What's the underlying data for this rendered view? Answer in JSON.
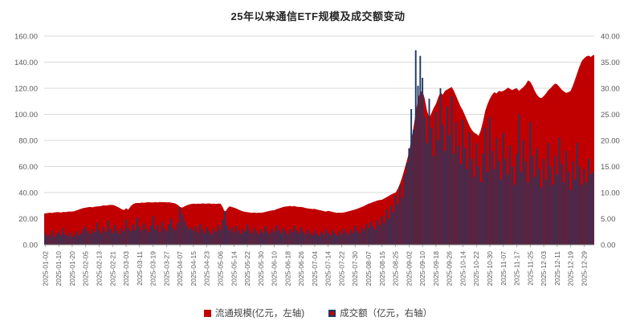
{
  "title": "25年以来通信ETF规模及成交额变动",
  "colors": {
    "area": "#C00000",
    "bar": "#1F3864",
    "grid": "#D9D9D9",
    "axis_line": "#808080",
    "axis_text": "#595959",
    "title_text": "#262626",
    "legend_text": "#404040",
    "background": "#FFFFFF"
  },
  "legend": {
    "marker_bar_fill": "#C00000",
    "marker_bar_border": "#1F3864"
  },
  "chart_data": {
    "type": "combo",
    "title": "25年以来通信ETF规模及成交额变动",
    "grid": true,
    "legend_position": "bottom",
    "x_tick_interval": 6,
    "x_tick_labels": [
      "2025-01-02",
      "2025-01-10",
      "2025-01-20",
      "2025-02-05",
      "2025-02-13",
      "2025-02-21",
      "2025-03-03",
      "2025-03-11",
      "2025-03-19",
      "2025-03-27",
      "2025-04-07",
      "2025-04-15",
      "2025-04-23",
      "2025-05-06",
      "2025-05-14",
      "2025-05-22",
      "2025-05-30",
      "2025-06-10",
      "2025-06-18",
      "2025-06-26",
      "2025-07-04",
      "2025-07-14",
      "2025-07-22",
      "2025-07-30",
      "2025-08-07",
      "2025-08-15",
      "2025-08-25",
      "2025-09-02",
      "2025-09-10",
      "2025-09-18",
      "2025-09-26",
      "2025-10-14",
      "2025-10-22",
      "2025-10-30",
      "2025-11-07",
      "2025-11-17",
      "2025-11-25",
      "2025-12-03",
      "2025-12-11",
      "2025-12-19",
      "2025-12-29"
    ],
    "left_axis": {
      "min": 0,
      "max": 160,
      "step": 20,
      "labels": [
        "0.00",
        "20.00",
        "40.00",
        "60.00",
        "80.00",
        "100.00",
        "120.00",
        "140.00",
        "160.00"
      ]
    },
    "right_axis": {
      "min": 0,
      "max": 40,
      "step": 5,
      "labels": [
        "0.00",
        "5.00",
        "10.00",
        "15.00",
        "20.00",
        "25.00",
        "30.00",
        "35.00",
        "40.00"
      ]
    },
    "series": [
      {
        "name": "流通规模(亿元，左轴)",
        "type": "area",
        "axis": "left",
        "color": "#C00000",
        "values": [
          24.0,
          24.3,
          24.6,
          24.4,
          24.8,
          25.0,
          25.0,
          24.7,
          25.2,
          25.0,
          25.4,
          25.5,
          25.5,
          25.8,
          26.4,
          27.0,
          27.6,
          28.2,
          28.5,
          28.8,
          29.0,
          28.7,
          29.2,
          29.4,
          29.5,
          29.8,
          30.2,
          30.0,
          30.4,
          30.5,
          30.5,
          30.0,
          29.2,
          28.3,
          27.2,
          26.6,
          28.0,
          26.8,
          29.5,
          31.0,
          31.8,
          32.0,
          32.0,
          32.3,
          32.1,
          32.4,
          32.6,
          32.4,
          32.5,
          32.7,
          32.4,
          32.8,
          32.6,
          32.7,
          32.5,
          32.6,
          32.3,
          32.0,
          31.5,
          30.5,
          29.0,
          28.5,
          29.5,
          30.2,
          30.8,
          31.2,
          31.5,
          31.3,
          31.6,
          31.4,
          31.7,
          31.5,
          31.5,
          31.7,
          31.4,
          31.6,
          31.3,
          31.5,
          31.5,
          29.0,
          24.6,
          27.5,
          29.5,
          29.0,
          28.5,
          27.8,
          27.0,
          26.2,
          25.6,
          25.2,
          25.0,
          24.8,
          24.5,
          24.7,
          24.4,
          24.6,
          24.5,
          24.8,
          25.2,
          25.6,
          26.0,
          26.3,
          26.5,
          27.2,
          27.8,
          28.4,
          29.0,
          29.3,
          29.5,
          29.8,
          29.4,
          29.7,
          29.2,
          29.0,
          29.0,
          28.6,
          28.2,
          27.9,
          27.6,
          27.4,
          27.5,
          27.0,
          26.6,
          26.2,
          25.8,
          25.5,
          26.0,
          25.6,
          25.2,
          24.8,
          24.5,
          24.6,
          24.5,
          24.8,
          25.2,
          25.6,
          26.1,
          26.5,
          27.0,
          27.6,
          28.3,
          29.0,
          29.8,
          30.6,
          31.5,
          32.0,
          32.8,
          33.3,
          34.0,
          34.3,
          34.5,
          35.5,
          36.5,
          37.5,
          38.5,
          39.3,
          40.0,
          43.0,
          47.0,
          52.0,
          58.0,
          64.0,
          71.0,
          80.0,
          90.0,
          101.0,
          112.0,
          117.0,
          118.0,
          112.0,
          103.0,
          97.0,
          101.0,
          105.0,
          108.0,
          113.0,
          117.0,
          115.0,
          118.0,
          119.0,
          120.0,
          121.0,
          118.0,
          114.0,
          110.0,
          106.0,
          103.0,
          99.0,
          95.0,
          91.0,
          88.0,
          86.0,
          85.0,
          83.5,
          88.0,
          95.0,
          103.0,
          108.0,
          112.0,
          115.0,
          117.0,
          116.0,
          118.0,
          117.5,
          118.0,
          119.0,
          120.5,
          119.5,
          118.5,
          119.5,
          120.0,
          118.0,
          119.5,
          121.0,
          123.0,
          126.0,
          125.0,
          122.0,
          118.0,
          115.0,
          113.0,
          112.5,
          114.0,
          116.0,
          118.5,
          120.0,
          122.0,
          123.5,
          123.0,
          121.0,
          119.0,
          117.5,
          116.5,
          117.0,
          118.0,
          122.0,
          127.0,
          132.0,
          137.0,
          141.0,
          143.0,
          144.5,
          145.0,
          144.0,
          145.5
        ]
      },
      {
        "name": "成交额（亿元，右轴）",
        "type": "bar",
        "axis": "right",
        "color": "#1F3864",
        "values": [
          2.2,
          1.6,
          1.9,
          2.8,
          1.5,
          2.1,
          2.5,
          1.8,
          3.2,
          2.0,
          1.7,
          2.4,
          1.5,
          1.9,
          2.6,
          1.8,
          2.2,
          3.0,
          3.5,
          2.6,
          2.1,
          3.0,
          2.4,
          4.2,
          2.8,
          2.2,
          3.4,
          2.5,
          4.6,
          3.0,
          2.3,
          3.8,
          2.7,
          2.1,
          3.2,
          2.6,
          4.8,
          3.2,
          2.6,
          3.9,
          2.8,
          5.2,
          3.5,
          2.7,
          4.1,
          3.0,
          2.4,
          3.6,
          5.5,
          2.9,
          3.8,
          2.5,
          4.4,
          3.1,
          2.6,
          3.9,
          5.0,
          3.3,
          2.8,
          4.2,
          7.2,
          5.8,
          4.5,
          3.6,
          2.9,
          3.3,
          2.7,
          3.5,
          2.4,
          4.0,
          2.9,
          2.2,
          3.4,
          2.6,
          2.0,
          3.1,
          2.5,
          3.8,
          2.9,
          4.8,
          6.5,
          3.7,
          2.8,
          3.3,
          2.4,
          3.6,
          2.7,
          2.1,
          3.0,
          2.5,
          3.9,
          2.8,
          2.2,
          3.3,
          2.6,
          2.0,
          2.9,
          2.3,
          3.5,
          2.6,
          2.1,
          3.1,
          2.5,
          3.7,
          2.8,
          2.2,
          3.2,
          2.6,
          2.0,
          3.0,
          2.4,
          3.6,
          2.7,
          2.2,
          3.3,
          2.5,
          2.0,
          2.9,
          2.3,
          1.8,
          2.7,
          2.1,
          1.7,
          2.5,
          2.0,
          3.0,
          2.3,
          1.8,
          2.8,
          2.2,
          1.7,
          2.6,
          2.0,
          3.1,
          2.4,
          1.9,
          2.9,
          2.3,
          3.6,
          2.7,
          2.2,
          3.3,
          2.8,
          4.0,
          3.2,
          4.5,
          3.5,
          2.9,
          4.8,
          3.8,
          5.5,
          4.2,
          6.8,
          5.0,
          7.5,
          6.2,
          9.5,
          7.8,
          11.5,
          9.0,
          13.5,
          15.7,
          18.5,
          26.0,
          22.0,
          37.3,
          30.5,
          36.2,
          32.0,
          24.5,
          19.5,
          28.0,
          22.5,
          17.0,
          25.5,
          20.0,
          30.0,
          23.0,
          18.0,
          26.5,
          21.0,
          28.5,
          17.5,
          23.5,
          19.0,
          15.5,
          24.0,
          18.5,
          14.5,
          21.5,
          16.5,
          13.0,
          19.5,
          15.0,
          12.0,
          17.5,
          22.5,
          14.0,
          24.5,
          18.0,
          14.5,
          20.5,
          16.0,
          12.5,
          21.5,
          16.5,
          13.5,
          19.0,
          15.0,
          11.5,
          17.5,
          25.0,
          14.0,
          20.0,
          16.0,
          12.0,
          23.5,
          17.0,
          13.0,
          18.5,
          14.5,
          11.0,
          16.5,
          12.5,
          19.5,
          15.0,
          11.5,
          17.0,
          13.5,
          20.5,
          15.5,
          12.0,
          18.0,
          14.0,
          10.5,
          16.0,
          12.5,
          19.5,
          15.0,
          11.5,
          14.5,
          12.0,
          16.5,
          13.5,
          14.0
        ]
      }
    ]
  }
}
